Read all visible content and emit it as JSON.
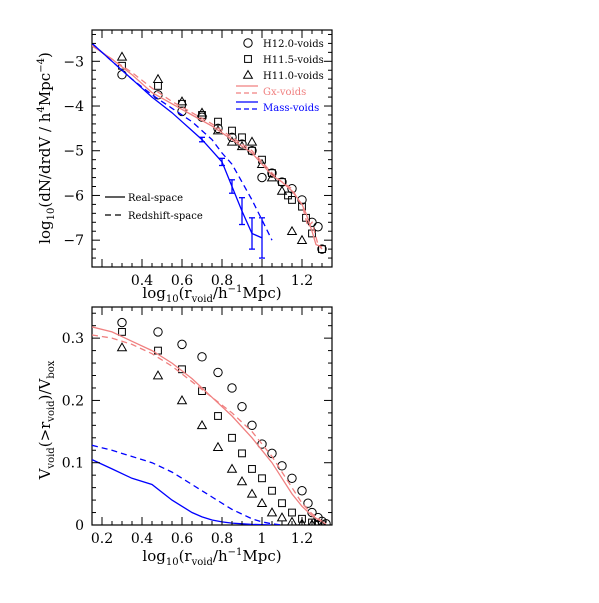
{
  "chart_data": [
    {
      "id": "top",
      "type": "line+scatter",
      "xlabel": "log10(r_void/h^-1Mpc)",
      "ylabel": "log10(dN/drdV / h^4Mpc^-4)",
      "xlim": [
        0.15,
        1.35
      ],
      "ylim": [
        -7.6,
        -2.3
      ],
      "xticks": [
        {
          "value": 0.4,
          "label": "0.4"
        },
        {
          "value": 0.6,
          "label": "0.6"
        },
        {
          "value": 0.8,
          "label": "0.8"
        },
        {
          "value": 1.0,
          "label": "1"
        },
        {
          "value": 1.2,
          "label": "1.2"
        }
      ],
      "yticks": [
        {
          "value": -3,
          "label": "−3"
        },
        {
          "value": -4,
          "label": "−4"
        },
        {
          "value": -5,
          "label": "−5"
        },
        {
          "value": -6,
          "label": "−6"
        },
        {
          "value": -7,
          "label": "−7"
        }
      ],
      "legend": {
        "placement": "top-right",
        "entries": [
          {
            "label": "H12.0-voids",
            "marker": "circle",
            "color": "#000000"
          },
          {
            "label": "H11.5-voids",
            "marker": "square",
            "color": "#000000"
          },
          {
            "label": "H11.0-voids",
            "marker": "triangle",
            "color": "#000000"
          },
          {
            "label": "Gx-voids",
            "line": "solid+dashed",
            "color": "#f08080"
          },
          {
            "label": "Mass-voids",
            "line": "solid+dashed",
            "color": "#0000ff"
          }
        ]
      },
      "legend2": {
        "placement": "bottom-left",
        "entries": [
          {
            "label": "Real-space",
            "line": "solid"
          },
          {
            "label": "Redshift-space",
            "line": "dashed"
          }
        ]
      },
      "series": [
        {
          "name": "H12.0-voids",
          "kind": "scatter",
          "marker": "circle",
          "color": "#000000",
          "x": [
            0.3,
            0.48,
            0.6,
            0.7,
            0.78,
            0.85,
            0.9,
            0.95,
            1.0,
            1.05,
            1.1,
            1.15,
            1.2,
            1.25,
            1.28,
            1.3
          ],
          "y": [
            -3.3,
            -3.75,
            -4.12,
            -4.25,
            -4.5,
            -4.7,
            -4.85,
            -5.0,
            -5.6,
            -5.5,
            -5.7,
            -5.85,
            -6.1,
            -6.6,
            -6.7,
            -7.2
          ]
        },
        {
          "name": "H11.5-voids",
          "kind": "scatter",
          "marker": "square",
          "color": "#000000",
          "x": [
            0.3,
            0.48,
            0.6,
            0.7,
            0.78,
            0.85,
            0.9,
            0.95,
            1.0,
            1.05,
            1.1,
            1.13,
            1.15,
            1.2,
            1.22,
            1.25,
            1.3
          ],
          "y": [
            -3.1,
            -3.55,
            -3.95,
            -4.2,
            -4.35,
            -4.55,
            -4.7,
            -5.0,
            -5.2,
            -5.5,
            -5.7,
            -6.0,
            -6.1,
            -6.25,
            -6.5,
            -6.85,
            -7.2
          ]
        },
        {
          "name": "H11.0-voids",
          "kind": "scatter",
          "marker": "triangle",
          "color": "#000000",
          "x": [
            0.3,
            0.48,
            0.6,
            0.7,
            0.78,
            0.85,
            0.9,
            0.95,
            1.0,
            1.05,
            1.1,
            1.15,
            1.2
          ],
          "y": [
            -2.9,
            -3.4,
            -3.9,
            -4.15,
            -4.55,
            -4.8,
            -4.9,
            -4.8,
            -5.3,
            -5.6,
            -5.9,
            -6.8,
            -7.0
          ]
        },
        {
          "name": "Gx-voids",
          "kind": "line",
          "dash": false,
          "color": "#f08080",
          "x": [
            0.15,
            0.25,
            0.35,
            0.45,
            0.55,
            0.65,
            0.75,
            0.85,
            0.95,
            1.0,
            1.05,
            1.1,
            1.15,
            1.2,
            1.22,
            1.25,
            1.27,
            1.3
          ],
          "y": [
            -2.65,
            -2.95,
            -3.3,
            -3.7,
            -3.95,
            -4.2,
            -4.45,
            -4.75,
            -5.05,
            -5.3,
            -5.55,
            -5.7,
            -5.9,
            -6.2,
            -6.4,
            -6.8,
            -7.1,
            -7.15
          ]
        },
        {
          "name": "Gx-voids",
          "kind": "line",
          "dash": true,
          "color": "#f08080",
          "x": [
            0.15,
            0.25,
            0.35,
            0.45,
            0.55,
            0.65,
            0.75,
            0.85,
            0.95,
            1.0,
            1.05,
            1.1,
            1.15,
            1.18,
            1.2,
            1.23,
            1.25,
            1.28,
            1.3
          ],
          "y": [
            -2.65,
            -2.95,
            -3.25,
            -3.6,
            -3.9,
            -4.15,
            -4.4,
            -4.7,
            -5.0,
            -5.25,
            -5.5,
            -5.7,
            -5.85,
            -6.1,
            -6.2,
            -6.7,
            -6.6,
            -7.1,
            -7.2
          ]
        },
        {
          "name": "Mass-voids",
          "kind": "line",
          "dash": false,
          "color": "#0000ff",
          "x": [
            0.15,
            0.25,
            0.35,
            0.45,
            0.55,
            0.6,
            0.65,
            0.7,
            0.75,
            0.8,
            0.85,
            0.9,
            0.95,
            1.0
          ],
          "y": [
            -2.6,
            -3.0,
            -3.4,
            -3.8,
            -4.15,
            -4.35,
            -4.55,
            -4.75,
            -5.0,
            -5.25,
            -5.8,
            -6.35,
            -6.85,
            -6.95
          ]
        },
        {
          "name": "Mass-voids",
          "kind": "line",
          "dash": true,
          "color": "#0000ff",
          "x": [
            0.15,
            0.25,
            0.35,
            0.45,
            0.55,
            0.65,
            0.75,
            0.8,
            0.85,
            0.9,
            0.95,
            1.0,
            1.05
          ],
          "y": [
            -2.6,
            -3.0,
            -3.4,
            -3.75,
            -4.05,
            -4.35,
            -4.75,
            -5.05,
            -5.3,
            -5.7,
            -6.1,
            -6.55,
            -7.0
          ]
        }
      ],
      "errorbars": {
        "color": "#0000ff",
        "x": [
          0.7,
          0.8,
          0.85,
          0.9,
          0.95,
          1.0
        ],
        "y": [
          -4.75,
          -5.25,
          -5.8,
          -6.35,
          -6.85,
          -6.95
        ],
        "err": [
          0.05,
          0.08,
          0.15,
          0.3,
          0.35,
          0.45
        ]
      }
    },
    {
      "id": "bottom",
      "type": "line+scatter",
      "xlabel": "log10(r_void/h^-1Mpc)",
      "ylabel": "V_void(>r_void)/V_box",
      "xlim": [
        0.15,
        1.35
      ],
      "ylim": [
        0,
        0.35
      ],
      "xticks": [
        {
          "value": 0.2,
          "label": "0.2"
        },
        {
          "value": 0.4,
          "label": "0.4"
        },
        {
          "value": 0.6,
          "label": "0.6"
        },
        {
          "value": 0.8,
          "label": "0.8"
        },
        {
          "value": 1.0,
          "label": "1"
        },
        {
          "value": 1.2,
          "label": "1.2"
        }
      ],
      "yticks": [
        {
          "value": 0,
          "label": "0"
        },
        {
          "value": 0.1,
          "label": "0.1"
        },
        {
          "value": 0.2,
          "label": "0.2"
        },
        {
          "value": 0.3,
          "label": "0.3"
        }
      ],
      "series": [
        {
          "name": "H12.0-voids",
          "kind": "scatter",
          "marker": "circle",
          "color": "#000000",
          "x": [
            0.3,
            0.48,
            0.6,
            0.7,
            0.78,
            0.85,
            0.9,
            0.95,
            1.0,
            1.05,
            1.1,
            1.15,
            1.2,
            1.23,
            1.25,
            1.28,
            1.3,
            1.32
          ],
          "y": [
            0.325,
            0.31,
            0.29,
            0.27,
            0.245,
            0.22,
            0.19,
            0.16,
            0.13,
            0.115,
            0.095,
            0.075,
            0.055,
            0.035,
            0.02,
            0.012,
            0.006,
            0.002
          ]
        },
        {
          "name": "H11.5-voids",
          "kind": "scatter",
          "marker": "square",
          "color": "#000000",
          "x": [
            0.3,
            0.48,
            0.6,
            0.7,
            0.78,
            0.85,
            0.9,
            0.95,
            1.0,
            1.05,
            1.1,
            1.15,
            1.2,
            1.25,
            1.28,
            1.3
          ],
          "y": [
            0.31,
            0.28,
            0.25,
            0.215,
            0.175,
            0.14,
            0.115,
            0.09,
            0.075,
            0.055,
            0.035,
            0.02,
            0.01,
            0.004,
            0.002,
            0.001
          ]
        },
        {
          "name": "H11.0-voids",
          "kind": "scatter",
          "marker": "triangle",
          "color": "#000000",
          "x": [
            0.3,
            0.48,
            0.6,
            0.7,
            0.78,
            0.85,
            0.9,
            0.95,
            1.0,
            1.05,
            1.1,
            1.15,
            1.2,
            1.25,
            1.3
          ],
          "y": [
            0.285,
            0.24,
            0.2,
            0.16,
            0.125,
            0.09,
            0.07,
            0.05,
            0.035,
            0.02,
            0.012,
            0.005,
            0.002,
            0.001,
            0.0
          ]
        },
        {
          "name": "Gx-voids",
          "kind": "line",
          "dash": false,
          "color": "#f08080",
          "x": [
            0.15,
            0.25,
            0.35,
            0.45,
            0.55,
            0.65,
            0.75,
            0.85,
            0.95,
            1.0,
            1.05,
            1.1,
            1.15,
            1.2,
            1.25,
            1.3,
            1.32
          ],
          "y": [
            0.318,
            0.31,
            0.295,
            0.28,
            0.26,
            0.235,
            0.205,
            0.175,
            0.14,
            0.12,
            0.1,
            0.075,
            0.05,
            0.03,
            0.015,
            0.005,
            0.002
          ]
        },
        {
          "name": "Gx-voids",
          "kind": "line",
          "dash": true,
          "color": "#f08080",
          "x": [
            0.15,
            0.25,
            0.35,
            0.45,
            0.55,
            0.65,
            0.75,
            0.85,
            0.95,
            1.0,
            1.05,
            1.1,
            1.15,
            1.2,
            1.25,
            1.3,
            1.32
          ],
          "y": [
            0.305,
            0.3,
            0.29,
            0.275,
            0.255,
            0.23,
            0.205,
            0.18,
            0.15,
            0.13,
            0.11,
            0.085,
            0.06,
            0.035,
            0.018,
            0.006,
            0.002
          ]
        },
        {
          "name": "Mass-voids",
          "kind": "line",
          "dash": false,
          "color": "#0000ff",
          "x": [
            0.15,
            0.25,
            0.35,
            0.45,
            0.55,
            0.6,
            0.65,
            0.7,
            0.75,
            0.8,
            0.85,
            0.9,
            0.95,
            1.0,
            1.05
          ],
          "y": [
            0.105,
            0.09,
            0.075,
            0.065,
            0.04,
            0.03,
            0.02,
            0.013,
            0.008,
            0.005,
            0.003,
            0.002,
            0.001,
            0.0005,
            0.0
          ]
        },
        {
          "name": "Mass-voids",
          "kind": "line",
          "dash": true,
          "color": "#0000ff",
          "x": [
            0.15,
            0.25,
            0.35,
            0.45,
            0.55,
            0.65,
            0.75,
            0.85,
            0.95,
            1.0,
            1.05,
            1.1
          ],
          "y": [
            0.128,
            0.12,
            0.11,
            0.1,
            0.085,
            0.065,
            0.045,
            0.025,
            0.01,
            0.005,
            0.002,
            0.0
          ]
        }
      ]
    }
  ]
}
